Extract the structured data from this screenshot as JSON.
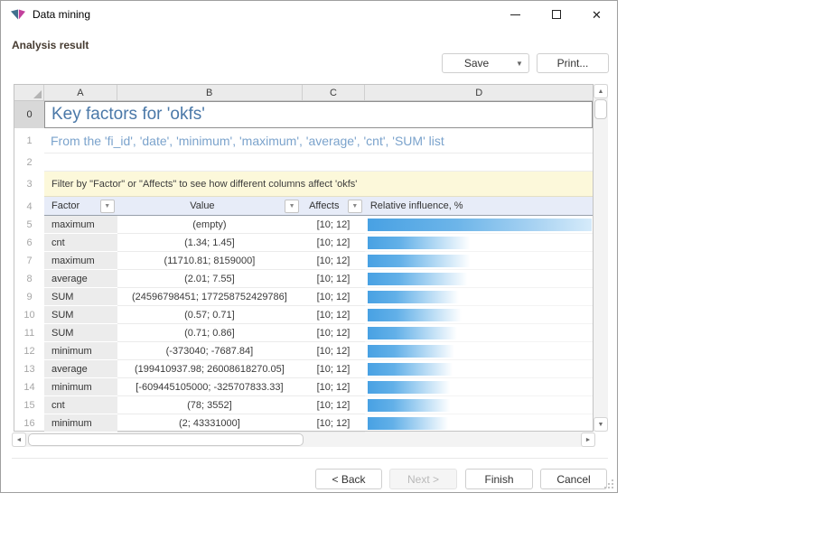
{
  "window": {
    "title": "Data mining"
  },
  "header": {
    "heading": "Analysis result",
    "save_label": "Save",
    "print_label": "Print..."
  },
  "icons": {
    "dropdown_arrow": "▼",
    "filter_arrow": "▼",
    "scroll_up": "▲",
    "scroll_down": "▼",
    "scroll_left": "◄",
    "scroll_right": "►",
    "close": "✕"
  },
  "grid": {
    "col_letters": [
      "A",
      "B",
      "C",
      "D"
    ],
    "row0": {
      "num": "0",
      "text": "Key factors for 'okfs'"
    },
    "row1": {
      "num": "1",
      "text": "From the 'fi_id', 'date', 'minimum', 'maximum', 'average', 'cnt', 'SUM' list"
    },
    "row2": {
      "num": "2"
    },
    "row3": {
      "num": "3",
      "text": "Filter by \"Factor\" or \"Affects\" to see how different columns affect 'okfs'"
    },
    "row4": {
      "num": "4",
      "factor": "Factor",
      "value": "Value",
      "affects": "Affects",
      "influence": "Relative influence, %"
    },
    "rows": [
      {
        "num": "5",
        "factor": "maximum",
        "value": "(empty)",
        "affects": "[10; 12]",
        "bar_pct": 100,
        "full": true
      },
      {
        "num": "6",
        "factor": "cnt",
        "value": "(1.34; 1.45]",
        "affects": "[10; 12]",
        "bar_pct": 48
      },
      {
        "num": "7",
        "factor": "maximum",
        "value": "(11710.81; 8159000]",
        "affects": "[10; 12]",
        "bar_pct": 48
      },
      {
        "num": "8",
        "factor": "average",
        "value": "(2.01; 7.55]",
        "affects": "[10; 12]",
        "bar_pct": 47
      },
      {
        "num": "9",
        "factor": "SUM",
        "value": "(24596798451; 177258752429786]",
        "affects": "[10; 12]",
        "bar_pct": 43
      },
      {
        "num": "10",
        "factor": "SUM",
        "value": "(0.57; 0.71]",
        "affects": "[10; 12]",
        "bar_pct": 44
      },
      {
        "num": "11",
        "factor": "SUM",
        "value": "(0.71; 0.86]",
        "affects": "[10; 12]",
        "bar_pct": 42
      },
      {
        "num": "12",
        "factor": "minimum",
        "value": "(-373040; -7687.84]",
        "affects": "[10; 12]",
        "bar_pct": 41
      },
      {
        "num": "13",
        "factor": "average",
        "value": "(199410937.98; 26008618270.05]",
        "affects": "[10; 12]",
        "bar_pct": 40
      },
      {
        "num": "14",
        "factor": "minimum",
        "value": "[-609445105000; -325707833.33]",
        "affects": "[10; 12]",
        "bar_pct": 39
      },
      {
        "num": "15",
        "factor": "cnt",
        "value": "(78; 3552]",
        "affects": "[10; 12]",
        "bar_pct": 39
      },
      {
        "num": "16",
        "factor": "minimum",
        "value": "(2; 43331000]",
        "affects": "[10; 12]",
        "bar_pct": 38
      }
    ]
  },
  "footer": {
    "back": "< Back",
    "next": "Next >",
    "finish": "Finish",
    "cancel": "Cancel"
  },
  "colors": {
    "bar_blue": "#48a1e3",
    "heading_blue": "#4a78a8",
    "note_bg": "#fcf8da",
    "filter_header_bg": "#e7ecf8"
  }
}
